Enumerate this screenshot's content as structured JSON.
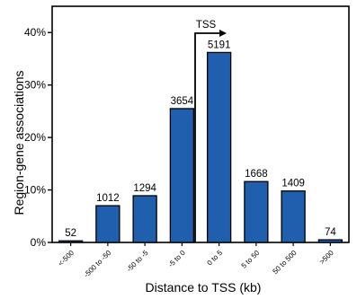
{
  "chart_data": {
    "type": "bar",
    "categories": [
      "<-500",
      "-500 to -50",
      "-50 to -5",
      "-5 to 0",
      "0 to 5",
      "5 to 50",
      "50 to 500",
      ">500"
    ],
    "values": [
      0.3,
      7.0,
      8.9,
      25.5,
      36.2,
      11.6,
      9.8,
      0.5
    ],
    "counts": [
      "52",
      "1012",
      "1294",
      "3654",
      "5191",
      "1668",
      "1409",
      "74"
    ],
    "ylim": [
      0,
      45
    ],
    "yticks": [
      0,
      10,
      20,
      30,
      40
    ],
    "ytick_labels": [
      "0%",
      "10%",
      "20%",
      "30%",
      "40%"
    ],
    "xlabel": "Distance to TSS (kb)",
    "ylabel": "Region-gene associations",
    "annotation": "TSS",
    "bar_color": "#1f5fad",
    "grid": false
  }
}
